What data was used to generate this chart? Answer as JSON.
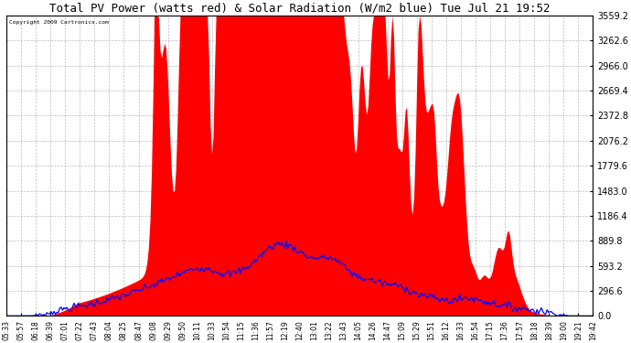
{
  "title": "Total PV Power (watts red) & Solar Radiation (W/m2 blue) Tue Jul 21 19:52",
  "copyright_text": "Copyright 2009 Cartronics.com",
  "yticks": [
    0.0,
    296.6,
    593.2,
    889.8,
    1186.4,
    1483.0,
    1779.6,
    2076.2,
    2372.8,
    2669.4,
    2966.0,
    3262.6,
    3559.2
  ],
  "ymax": 3559.2,
  "ymin": 0.0,
  "bg_color": "#ffffff",
  "plot_bg_color": "#ffffff",
  "grid_color": "#aaaaaa",
  "red_color": "#ff0000",
  "blue_color": "#0000ff",
  "title_fontsize": 9,
  "xtick_labels": [
    "05:33",
    "05:57",
    "06:18",
    "06:39",
    "07:01",
    "07:22",
    "07:43",
    "08:04",
    "08:25",
    "08:47",
    "09:08",
    "09:29",
    "09:50",
    "10:11",
    "10:33",
    "10:54",
    "11:15",
    "11:36",
    "11:57",
    "12:19",
    "12:40",
    "13:01",
    "13:22",
    "13:43",
    "14:05",
    "14:26",
    "14:47",
    "15:09",
    "15:29",
    "15:51",
    "16:12",
    "16:33",
    "16:54",
    "17:15",
    "17:36",
    "17:57",
    "18:18",
    "18:39",
    "19:00",
    "19:21",
    "19:42"
  ]
}
